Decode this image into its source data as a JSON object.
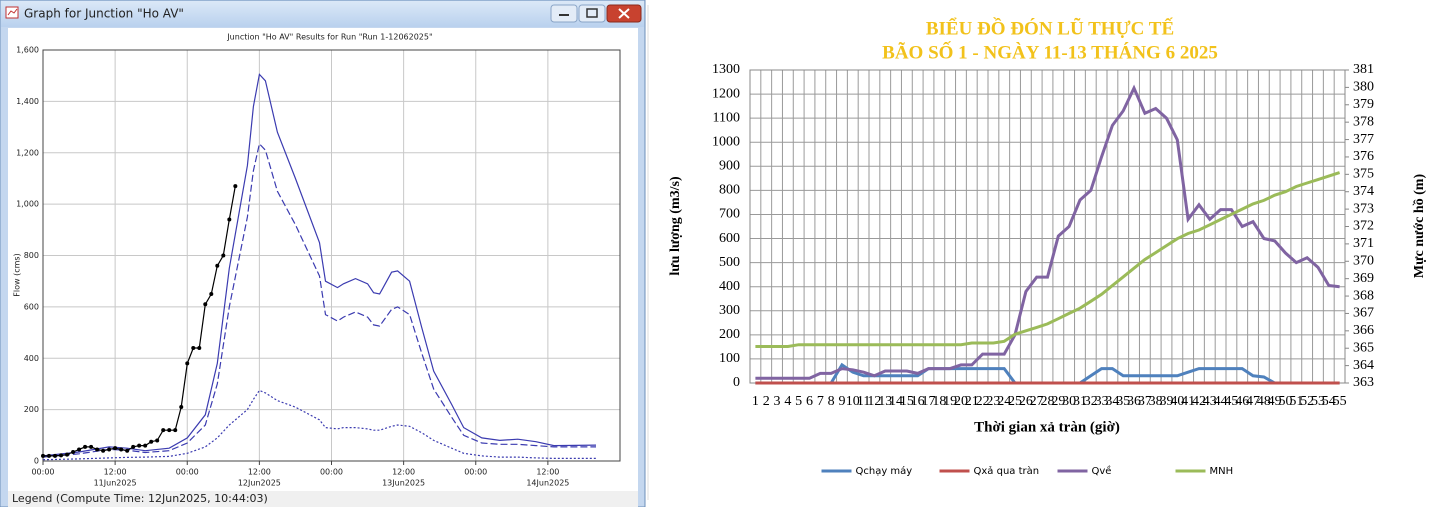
{
  "window": {
    "title": "Graph for Junction \"Ho AV\"",
    "legend": "Legend (Compute Time: 12Jun2025, 10:44:03)"
  },
  "chart_data": [
    {
      "type": "line",
      "title": "Junction \"Ho AV\" Results for Run \"Run 1-12062025\"",
      "y_label": "Flow (cms)",
      "xlim": [
        0,
        96
      ],
      "xticks": [
        {
          "value": 0,
          "label": "00:00"
        },
        {
          "value": 12,
          "label": "12:00"
        },
        {
          "value": 24,
          "label": "00:00"
        },
        {
          "value": 36,
          "label": "12:00"
        },
        {
          "value": 48,
          "label": "00:00"
        },
        {
          "value": 60,
          "label": "12:00"
        },
        {
          "value": 72,
          "label": "00:00"
        },
        {
          "value": 84,
          "label": "12:00"
        }
      ],
      "xdate_ticks": [
        {
          "value": 12,
          "label": "11Jun2025"
        },
        {
          "value": 36,
          "label": "12Jun2025"
        },
        {
          "value": 60,
          "label": "13Jun2025"
        },
        {
          "value": 84,
          "label": "14Jun2025"
        }
      ],
      "ylim": [
        0,
        1600
      ],
      "yticks": [
        0,
        200,
        400,
        600,
        800,
        {
          "value": 1000,
          "label": "1,000"
        },
        {
          "value": 1200,
          "label": "1,200"
        },
        {
          "value": 1400,
          "label": "1,400"
        },
        {
          "value": 1600,
          "label": "1,600"
        }
      ],
      "grid": true,
      "series": [
        {
          "color": "#3b3bb0",
          "style": "solid",
          "x": [
            0,
            6,
            11,
            14,
            17,
            21,
            24,
            27,
            29,
            31,
            34,
            35,
            36,
            37,
            39,
            42,
            46,
            47,
            49,
            50,
            52,
            54,
            55,
            56,
            58,
            59,
            61,
            63,
            65,
            68,
            70,
            73,
            76,
            79,
            82,
            85,
            92
          ],
          "values": [
            20,
            35,
            55,
            50,
            40,
            50,
            90,
            180,
            380,
            750,
            1150,
            1380,
            1505,
            1480,
            1280,
            1100,
            850,
            700,
            675,
            690,
            710,
            690,
            655,
            650,
            735,
            740,
            700,
            520,
            350,
            220,
            130,
            90,
            80,
            85,
            75,
            60,
            62
          ]
        },
        {
          "color": "#3b3bb0",
          "style": "dashed",
          "x": [
            0,
            6,
            11,
            14,
            17,
            21,
            24,
            27,
            29,
            31,
            34,
            35,
            36,
            37,
            39,
            42,
            46,
            47,
            49,
            50,
            52,
            54,
            55,
            56,
            58,
            59,
            61,
            63,
            65,
            68,
            70,
            73,
            76,
            79,
            82,
            85,
            92
          ],
          "values": [
            15,
            28,
            45,
            42,
            33,
            40,
            70,
            140,
            300,
            600,
            950,
            1130,
            1235,
            1210,
            1050,
            920,
            720,
            570,
            545,
            560,
            580,
            560,
            530,
            525,
            590,
            600,
            570,
            420,
            280,
            170,
            100,
            70,
            65,
            65,
            60,
            55,
            55
          ]
        },
        {
          "color": "#3b3bb0",
          "style": "dotted",
          "x": [
            0,
            6,
            11,
            14,
            17,
            21,
            24,
            27,
            29,
            31,
            34,
            35,
            36,
            37,
            39,
            42,
            46,
            47,
            49,
            50,
            52,
            54,
            55,
            56,
            58,
            59,
            61,
            63,
            65,
            68,
            70,
            73,
            76,
            79,
            82,
            85,
            92
          ],
          "values": [
            5,
            8,
            12,
            14,
            15,
            18,
            30,
            55,
            90,
            140,
            200,
            240,
            275,
            265,
            235,
            210,
            160,
            130,
            125,
            130,
            130,
            125,
            120,
            120,
            135,
            140,
            135,
            110,
            80,
            50,
            30,
            20,
            15,
            15,
            12,
            10,
            10
          ]
        },
        {
          "color": "#000000",
          "style": "solid",
          "marker": true,
          "x": [
            0,
            1,
            2,
            3,
            4,
            5,
            6,
            7,
            8,
            9,
            10,
            11,
            12,
            13,
            14,
            15,
            16,
            17,
            18,
            19,
            20,
            21,
            22,
            23,
            24,
            25,
            26,
            27,
            28,
            29,
            30,
            31,
            32
          ],
          "values": [
            20,
            20,
            20,
            22,
            25,
            35,
            45,
            55,
            55,
            45,
            40,
            45,
            50,
            45,
            40,
            55,
            60,
            60,
            75,
            80,
            120,
            120,
            120,
            210,
            380,
            440,
            440,
            610,
            650,
            760,
            800,
            940,
            1070
          ]
        }
      ]
    },
    {
      "type": "line",
      "title": "BIỂU ĐỒ ĐÓN LŨ THỰC TẾ",
      "subtitle": "BÃO SỐ 1 - NGÀY 11-13 THÁNG 6 2025",
      "x_label": "Thời gian xả tràn (giờ)",
      "y_label": "lưu lượng (m3/s)",
      "y2_label": "Mực nước hồ (m)",
      "categories": [
        1,
        2,
        3,
        4,
        5,
        6,
        7,
        8,
        9,
        10,
        11,
        12,
        13,
        14,
        15,
        16,
        17,
        18,
        19,
        20,
        21,
        22,
        23,
        24,
        25,
        26,
        27,
        28,
        29,
        30,
        31,
        32,
        33,
        34,
        35,
        36,
        37,
        38,
        39,
        40,
        41,
        42,
        43,
        44,
        45,
        46,
        47,
        48,
        49,
        50,
        51,
        52,
        53,
        54,
        55
      ],
      "ylim": [
        0,
        1300
      ],
      "yticks": [
        0,
        100,
        200,
        300,
        400,
        500,
        600,
        700,
        800,
        900,
        1000,
        1100,
        1200,
        1300
      ],
      "y2lim": [
        363,
        381
      ],
      "y2ticks": [
        363,
        364,
        365,
        366,
        367,
        368,
        369,
        370,
        371,
        372,
        373,
        374,
        375,
        376,
        377,
        378,
        379,
        380,
        381
      ],
      "grid": true,
      "legend": "bottom",
      "series": [
        {
          "name": "Qchạy máy",
          "color": "#4f81bd",
          "values": [
            0,
            0,
            0,
            0,
            0,
            0,
            0,
            0,
            75,
            45,
            30,
            30,
            30,
            30,
            30,
            30,
            60,
            60,
            60,
            60,
            60,
            60,
            60,
            60,
            0,
            0,
            0,
            0,
            0,
            0,
            0,
            30,
            60,
            60,
            30,
            30,
            30,
            30,
            30,
            30,
            45,
            60,
            60,
            60,
            60,
            60,
            30,
            25,
            0,
            0,
            0,
            0,
            0,
            0,
            0
          ]
        },
        {
          "name": "Qxả qua tràn",
          "color": "#c0504d",
          "values": [
            0,
            0,
            0,
            0,
            0,
            0,
            0,
            0,
            0,
            0,
            0,
            0,
            0,
            0,
            0,
            0,
            0,
            0,
            0,
            0,
            0,
            0,
            0,
            0,
            0,
            0,
            0,
            0,
            0,
            0,
            0,
            0,
            0,
            0,
            0,
            0,
            0,
            0,
            0,
            0,
            0,
            0,
            0,
            0,
            0,
            0,
            0,
            0,
            0,
            0,
            0,
            0,
            0,
            0,
            0
          ]
        },
        {
          "name": "Qvề",
          "color": "#8064a2",
          "values": [
            20,
            20,
            20,
            20,
            20,
            20,
            40,
            40,
            60,
            55,
            45,
            30,
            50,
            50,
            50,
            40,
            60,
            60,
            60,
            75,
            75,
            120,
            120,
            120,
            200,
            380,
            440,
            440,
            610,
            650,
            760,
            800,
            940,
            1070,
            1130,
            1225,
            1120,
            1140,
            1100,
            1010,
            680,
            740,
            680,
            720,
            720,
            650,
            670,
            600,
            590,
            540,
            500,
            520,
            480,
            405,
            400
          ]
        },
        {
          "name": "MNH",
          "color": "#9bbb59",
          "axis": "y2",
          "values": [
            365.1,
            365.1,
            365.1,
            365.1,
            365.2,
            365.2,
            365.2,
            365.2,
            365.2,
            365.2,
            365.2,
            365.2,
            365.2,
            365.2,
            365.2,
            365.2,
            365.2,
            365.2,
            365.2,
            365.2,
            365.3,
            365.3,
            365.3,
            365.4,
            365.8,
            366,
            366.2,
            366.4,
            366.7,
            367,
            367.3,
            367.7,
            368.1,
            368.6,
            369.1,
            369.6,
            370.1,
            370.5,
            370.9,
            371.3,
            371.6,
            371.8,
            372.1,
            372.4,
            372.7,
            373,
            373.3,
            373.5,
            373.8,
            374,
            374.3,
            374.5,
            374.7,
            374.9,
            375.1
          ]
        }
      ]
    }
  ]
}
